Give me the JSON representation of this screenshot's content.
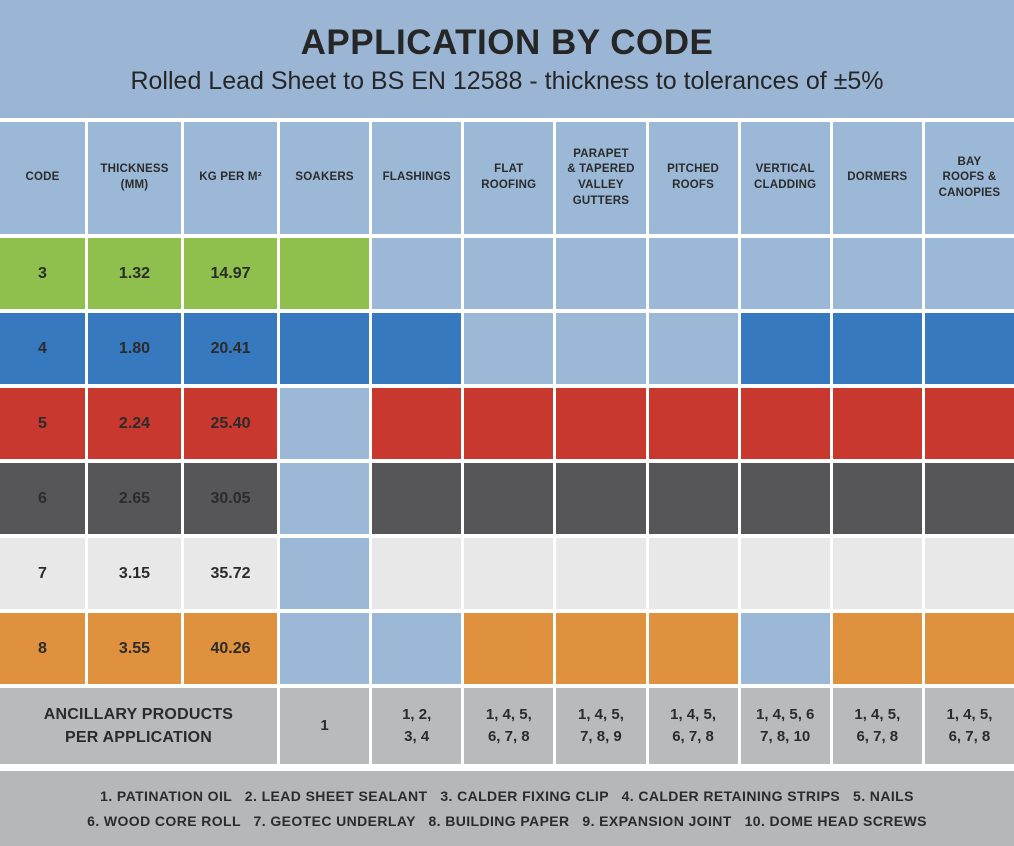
{
  "title": "APPLICATION BY CODE",
  "subtitle": "Rolled Lead Sheet to BS EN 12588 - thickness to tolerances of ±5%",
  "colors": {
    "panel_blue": "#9BB6D5",
    "cell_blue": "#9CB8D7",
    "green": "#8FBF4D",
    "blue": "#3779BE",
    "red": "#C8382E",
    "dark_gray": "#565658",
    "light_gray": "#E8E8E8",
    "orange": "#E0913E",
    "footer_gray": "#B9BABC",
    "legend_gray": "#B5B7B9",
    "text_dark": "#2B2B2B"
  },
  "chart_data": {
    "type": "table",
    "title": "APPLICATION BY CODE",
    "subtitle": "Rolled Lead Sheet to BS EN 12588 - thickness to tolerances of ±5%",
    "columns": [
      "CODE",
      "THICKNESS\n(MM)",
      "KG PER M²",
      "SOAKERS",
      "FLASHINGS",
      "FLAT\nROOFING",
      "PARAPET\n& TAPERED\nVALLEY\nGUTTERS",
      "PITCHED\nROOFS",
      "VERTICAL\nCLADDING",
      "DORMERS",
      "BAY\nROOFS &\nCANOPIES"
    ],
    "application_columns": [
      "SOAKERS",
      "FLASHINGS",
      "FLAT ROOFING",
      "PARAPET & TAPERED VALLEY GUTTERS",
      "PITCHED ROOFS",
      "VERTICAL CLADDING",
      "DORMERS",
      "BAY ROOFS & CANOPIES"
    ],
    "rows": [
      {
        "code": "3",
        "thickness_mm": "1.32",
        "kg_per_m2": "14.97",
        "color_key": "green",
        "applications": [
          true,
          false,
          false,
          false,
          false,
          false,
          false,
          false
        ]
      },
      {
        "code": "4",
        "thickness_mm": "1.80",
        "kg_per_m2": "20.41",
        "color_key": "blue",
        "applications": [
          true,
          true,
          false,
          false,
          false,
          true,
          true,
          true
        ]
      },
      {
        "code": "5",
        "thickness_mm": "2.24",
        "kg_per_m2": "25.40",
        "color_key": "red",
        "applications": [
          false,
          true,
          true,
          true,
          true,
          true,
          true,
          true
        ]
      },
      {
        "code": "6",
        "thickness_mm": "2.65",
        "kg_per_m2": "30.05",
        "color_key": "dark_gray",
        "applications": [
          false,
          true,
          true,
          true,
          true,
          true,
          true,
          true
        ]
      },
      {
        "code": "7",
        "thickness_mm": "3.15",
        "kg_per_m2": "35.72",
        "color_key": "light_gray",
        "applications": [
          false,
          true,
          true,
          true,
          true,
          true,
          true,
          true
        ]
      },
      {
        "code": "8",
        "thickness_mm": "3.55",
        "kg_per_m2": "40.26",
        "color_key": "orange",
        "applications": [
          false,
          false,
          true,
          true,
          true,
          false,
          true,
          true
        ]
      }
    ],
    "ancillary": {
      "label": "ANCILLARY PRODUCTS\nPER APPLICATION",
      "values": [
        "1",
        "1, 2,\n3, 4",
        "1, 4, 5,\n6, 7, 8",
        "1, 4, 5,\n7, 8, 9",
        "1, 4, 5,\n6, 7, 8",
        "1, 4, 5, 6\n7, 8, 10",
        "1, 4, 5,\n6, 7, 8",
        "1, 4, 5,\n6, 7, 8"
      ]
    },
    "legend": {
      "line1": "1. PATINATION OIL   2. LEAD SHEET SEALANT   3. CALDER FIXING CLIP   4. CALDER RETAINING STRIPS   5. NAILS",
      "line2": "6. WOOD CORE ROLL   7. GEOTEC UNDERLAY   8. BUILDING PAPER   9. EXPANSION JOINT   10. DOME HEAD SCREWS"
    }
  }
}
